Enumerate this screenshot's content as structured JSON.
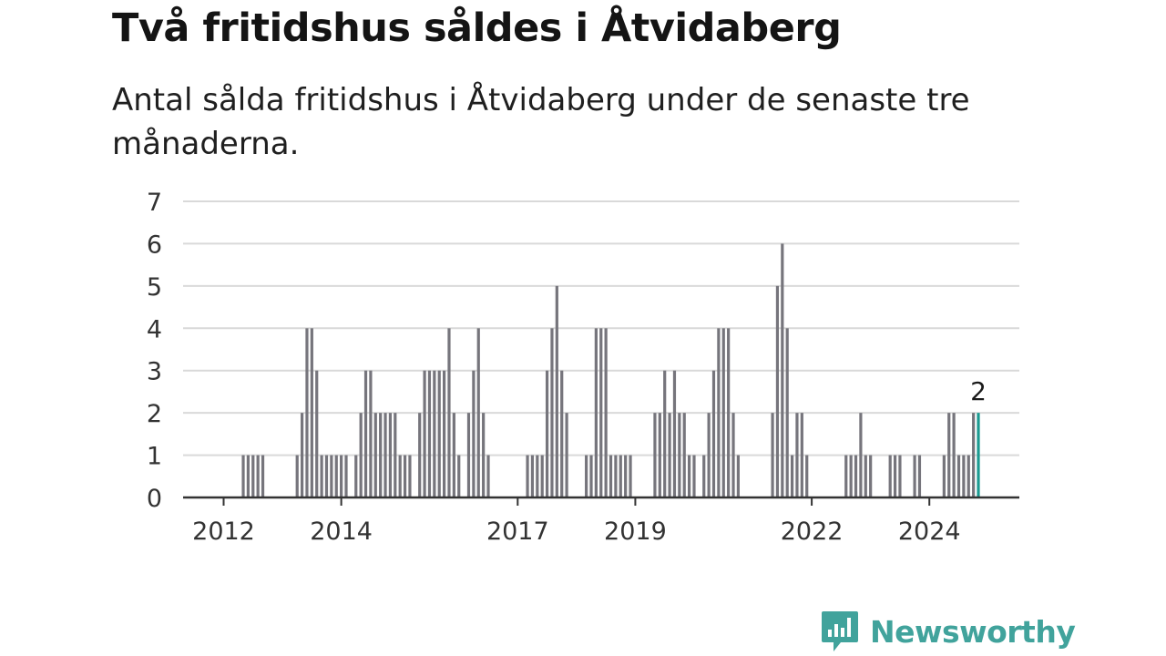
{
  "title": "Två fritidshus såldes i Åtvidaberg",
  "subtitle": "Antal sålda fritidshus i Åtvidaberg under de senaste tre månaderna.",
  "brand": {
    "name": "Newsworthy",
    "icon": "newsworthy-logo-icon"
  },
  "colors": {
    "bar": "#76757c",
    "highlight": "#1b9a91",
    "grid": "#d9d9d9",
    "axis": "#333333",
    "brand": "#41a39c"
  },
  "chart_data": {
    "type": "bar",
    "title": "Två fritidshus såldes i Åtvidaberg",
    "xlabel": "",
    "ylabel": "",
    "ylim": [
      0,
      7
    ],
    "yticks": [
      0,
      1,
      2,
      3,
      4,
      5,
      6,
      7
    ],
    "grid": true,
    "x_tick_labels": [
      {
        "label": "2012",
        "month_index": 0
      },
      {
        "label": "2014",
        "month_index": 24
      },
      {
        "label": "2017",
        "month_index": 60
      },
      {
        "label": "2019",
        "month_index": 84
      },
      {
        "label": "2022",
        "month_index": 120
      },
      {
        "label": "2024",
        "month_index": 144
      }
    ],
    "bars": [
      {
        "month_index": 4,
        "value": 1
      },
      {
        "month_index": 5,
        "value": 1
      },
      {
        "month_index": 6,
        "value": 1
      },
      {
        "month_index": 7,
        "value": 1
      },
      {
        "month_index": 8,
        "value": 1
      },
      {
        "month_index": 15,
        "value": 1
      },
      {
        "month_index": 16,
        "value": 2
      },
      {
        "month_index": 17,
        "value": 4
      },
      {
        "month_index": 18,
        "value": 4
      },
      {
        "month_index": 19,
        "value": 3
      },
      {
        "month_index": 20,
        "value": 1
      },
      {
        "month_index": 21,
        "value": 1
      },
      {
        "month_index": 22,
        "value": 1
      },
      {
        "month_index": 23,
        "value": 1
      },
      {
        "month_index": 24,
        "value": 1
      },
      {
        "month_index": 25,
        "value": 1
      },
      {
        "month_index": 27,
        "value": 1
      },
      {
        "month_index": 28,
        "value": 2
      },
      {
        "month_index": 29,
        "value": 3
      },
      {
        "month_index": 30,
        "value": 3
      },
      {
        "month_index": 31,
        "value": 2
      },
      {
        "month_index": 32,
        "value": 2
      },
      {
        "month_index": 33,
        "value": 2
      },
      {
        "month_index": 34,
        "value": 2
      },
      {
        "month_index": 35,
        "value": 2
      },
      {
        "month_index": 36,
        "value": 1
      },
      {
        "month_index": 37,
        "value": 1
      },
      {
        "month_index": 38,
        "value": 1
      },
      {
        "month_index": 40,
        "value": 2
      },
      {
        "month_index": 41,
        "value": 3
      },
      {
        "month_index": 42,
        "value": 3
      },
      {
        "month_index": 43,
        "value": 3
      },
      {
        "month_index": 44,
        "value": 3
      },
      {
        "month_index": 45,
        "value": 3
      },
      {
        "month_index": 46,
        "value": 4
      },
      {
        "month_index": 47,
        "value": 2
      },
      {
        "month_index": 48,
        "value": 1
      },
      {
        "month_index": 50,
        "value": 2
      },
      {
        "month_index": 51,
        "value": 3
      },
      {
        "month_index": 52,
        "value": 4
      },
      {
        "month_index": 53,
        "value": 2
      },
      {
        "month_index": 54,
        "value": 1
      },
      {
        "month_index": 62,
        "value": 1
      },
      {
        "month_index": 63,
        "value": 1
      },
      {
        "month_index": 64,
        "value": 1
      },
      {
        "month_index": 65,
        "value": 1
      },
      {
        "month_index": 66,
        "value": 3
      },
      {
        "month_index": 67,
        "value": 4
      },
      {
        "month_index": 68,
        "value": 5
      },
      {
        "month_index": 69,
        "value": 3
      },
      {
        "month_index": 70,
        "value": 2
      },
      {
        "month_index": 74,
        "value": 1
      },
      {
        "month_index": 75,
        "value": 1
      },
      {
        "month_index": 76,
        "value": 4
      },
      {
        "month_index": 77,
        "value": 4
      },
      {
        "month_index": 78,
        "value": 4
      },
      {
        "month_index": 79,
        "value": 1
      },
      {
        "month_index": 80,
        "value": 1
      },
      {
        "month_index": 81,
        "value": 1
      },
      {
        "month_index": 82,
        "value": 1
      },
      {
        "month_index": 83,
        "value": 1
      },
      {
        "month_index": 88,
        "value": 2
      },
      {
        "month_index": 89,
        "value": 2
      },
      {
        "month_index": 90,
        "value": 3
      },
      {
        "month_index": 91,
        "value": 2
      },
      {
        "month_index": 92,
        "value": 3
      },
      {
        "month_index": 93,
        "value": 2
      },
      {
        "month_index": 94,
        "value": 2
      },
      {
        "month_index": 95,
        "value": 1
      },
      {
        "month_index": 96,
        "value": 1
      },
      {
        "month_index": 98,
        "value": 1
      },
      {
        "month_index": 99,
        "value": 2
      },
      {
        "month_index": 100,
        "value": 3
      },
      {
        "month_index": 101,
        "value": 4
      },
      {
        "month_index": 102,
        "value": 4
      },
      {
        "month_index": 103,
        "value": 4
      },
      {
        "month_index": 104,
        "value": 2
      },
      {
        "month_index": 105,
        "value": 1
      },
      {
        "month_index": 112,
        "value": 2
      },
      {
        "month_index": 113,
        "value": 5
      },
      {
        "month_index": 114,
        "value": 6
      },
      {
        "month_index": 115,
        "value": 4
      },
      {
        "month_index": 116,
        "value": 1
      },
      {
        "month_index": 117,
        "value": 2
      },
      {
        "month_index": 118,
        "value": 2
      },
      {
        "month_index": 119,
        "value": 1
      },
      {
        "month_index": 127,
        "value": 1
      },
      {
        "month_index": 128,
        "value": 1
      },
      {
        "month_index": 129,
        "value": 1
      },
      {
        "month_index": 130,
        "value": 2
      },
      {
        "month_index": 131,
        "value": 1
      },
      {
        "month_index": 132,
        "value": 1
      },
      {
        "month_index": 136,
        "value": 1
      },
      {
        "month_index": 137,
        "value": 1
      },
      {
        "month_index": 138,
        "value": 1
      },
      {
        "month_index": 141,
        "value": 1
      },
      {
        "month_index": 142,
        "value": 1
      },
      {
        "month_index": 147,
        "value": 1
      },
      {
        "month_index": 148,
        "value": 2
      },
      {
        "month_index": 149,
        "value": 2
      },
      {
        "month_index": 150,
        "value": 1
      },
      {
        "month_index": 151,
        "value": 1
      },
      {
        "month_index": 152,
        "value": 1
      },
      {
        "month_index": 153,
        "value": 2
      },
      {
        "month_index": 154,
        "value": 2,
        "highlight": true
      }
    ],
    "annotations": [
      {
        "month_index": 154,
        "text": "2"
      }
    ]
  }
}
